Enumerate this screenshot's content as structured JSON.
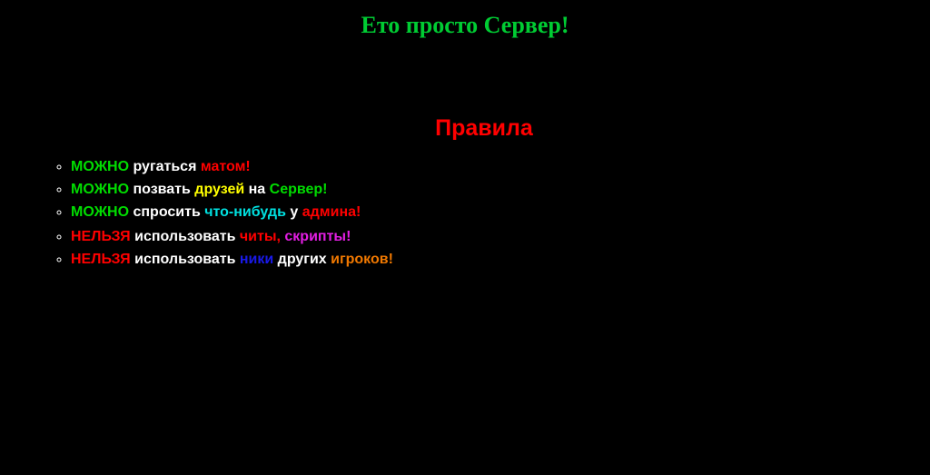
{
  "colors": {
    "background": "#000000",
    "title_green": "#00CC33",
    "heading_red": "#FF0000",
    "green": "#00DD00",
    "white": "#FFFFFF",
    "red": "#FF0000",
    "yellow": "#FFFF00",
    "cyan": "#00E0E0",
    "magenta": "#E31EE3",
    "blue": "#1919E8",
    "orange": "#F07800"
  },
  "header": {
    "title": "Ето просто Сервер!"
  },
  "rules": {
    "heading": "Правила",
    "allowed": [
      {
        "segments": [
          {
            "text": "МОЖНО",
            "color": "#00DD00"
          },
          {
            "text": " ругаться ",
            "color": "#FFFFFF"
          },
          {
            "text": "матом!",
            "color": "#FF0000"
          }
        ]
      },
      {
        "segments": [
          {
            "text": "МОЖНО",
            "color": "#00DD00"
          },
          {
            "text": " позвать ",
            "color": "#FFFFFF"
          },
          {
            "text": "друзей",
            "color": "#FFFF00"
          },
          {
            "text": " на ",
            "color": "#FFFFFF"
          },
          {
            "text": "Сервер!",
            "color": "#00DD00"
          }
        ]
      },
      {
        "segments": [
          {
            "text": "МОЖНО",
            "color": "#00DD00"
          },
          {
            "text": " спросить ",
            "color": "#FFFFFF"
          },
          {
            "text": "что-нибудь",
            "color": "#00E0E0"
          },
          {
            "text": " у ",
            "color": "#FFFFFF"
          },
          {
            "text": "админа!",
            "color": "#FF0000"
          }
        ]
      }
    ],
    "forbidden": [
      {
        "segments": [
          {
            "text": "НЕЛЬЗЯ",
            "color": "#FF0000"
          },
          {
            "text": " использовать ",
            "color": "#FFFFFF"
          },
          {
            "text": "читы,",
            "color": "#FF0000"
          },
          {
            "text": " скрипты!",
            "color": "#E31EE3"
          }
        ]
      },
      {
        "segments": [
          {
            "text": "НЕЛЬЗЯ",
            "color": "#FF0000"
          },
          {
            "text": " использовать ",
            "color": "#FFFFFF"
          },
          {
            "text": "ники",
            "color": "#1919E8"
          },
          {
            "text": " других ",
            "color": "#FFFFFF"
          },
          {
            "text": "игроков!",
            "color": "#F07800"
          }
        ]
      }
    ]
  }
}
